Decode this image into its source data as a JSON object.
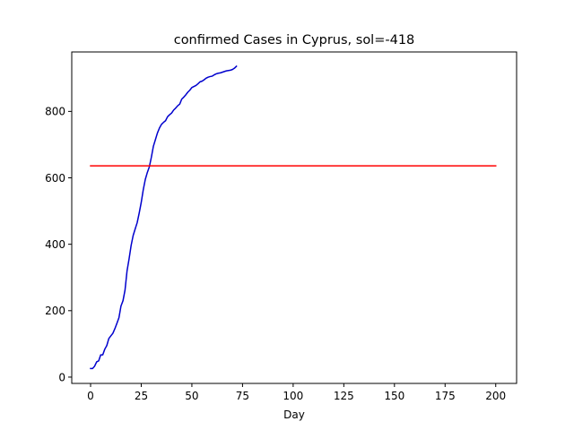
{
  "chart_data": {
    "type": "line",
    "title": "confirmed Cases in Cyprus, sol=-418",
    "xlabel": "Day",
    "ylabel": "",
    "xlim": [
      -9.3,
      210.3
    ],
    "ylim": [
      -19,
      979
    ],
    "xticks": [
      0,
      25,
      50,
      75,
      100,
      125,
      150,
      175,
      200
    ],
    "yticks": [
      0,
      200,
      400,
      600,
      800
    ],
    "grid": false,
    "series": [
      {
        "color": "#0000cd",
        "x": [
          0,
          1,
          2,
          3,
          4,
          5,
          6,
          7,
          8,
          9,
          10,
          11,
          12,
          13,
          14,
          15,
          16,
          17,
          18,
          19,
          20,
          21,
          22,
          23,
          24,
          25,
          26,
          27,
          28,
          29,
          30,
          31,
          32,
          33,
          34,
          35,
          36,
          37,
          38,
          39,
          40,
          41,
          42,
          43,
          44,
          45,
          46,
          47,
          48,
          49,
          50,
          51,
          52,
          53,
          54,
          55,
          56,
          57,
          58,
          59,
          60,
          61,
          62,
          63,
          64,
          65,
          66,
          67,
          68,
          69,
          70,
          71,
          72
        ],
        "values": [
          26,
          26,
          33,
          46,
          49,
          67,
          67,
          84,
          95,
          116,
          124,
          132,
          146,
          162,
          179,
          214,
          230,
          262,
          320,
          356,
          396,
          426,
          446,
          465,
          494,
          526,
          564,
          595,
          616,
          633,
          662,
          695,
          715,
          735,
          750,
          761,
          767,
          772,
          784,
          790,
          795,
          804,
          810,
          817,
          822,
          837,
          843,
          850,
          858,
          864,
          872,
          875,
          878,
          883,
          889,
          891,
          895,
          900,
          903,
          905,
          906,
          910,
          913,
          915,
          916,
          918,
          920,
          922,
          923,
          924,
          926,
          930,
          936
        ]
      },
      {
        "color": "#ff0000",
        "x": [
          0,
          200
        ],
        "values": [
          636,
          636
        ]
      }
    ]
  }
}
